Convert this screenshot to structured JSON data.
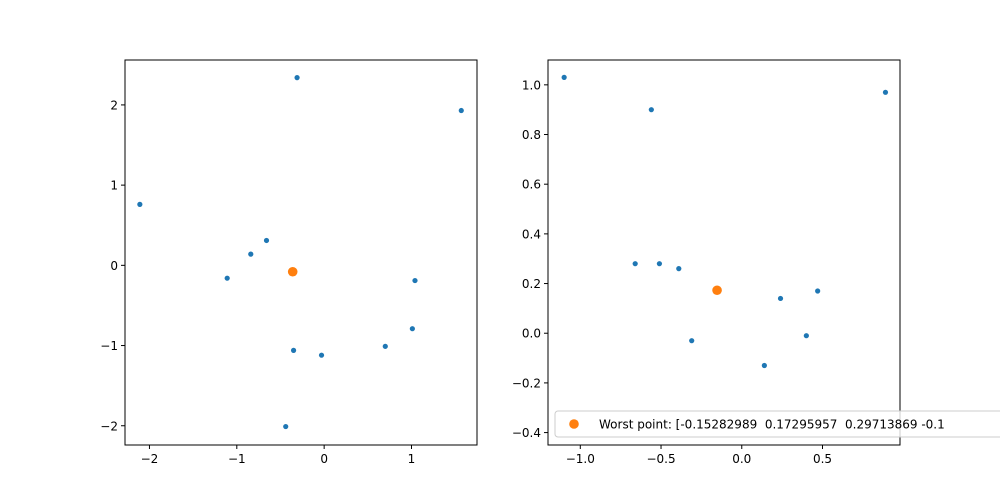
{
  "chart_data": [
    {
      "type": "scatter",
      "title": "",
      "xlabel": "",
      "ylabel": "",
      "xlim": [
        -2.28,
        1.75
      ],
      "ylim": [
        -2.24,
        2.56
      ],
      "xticks": [
        -2,
        -1,
        0,
        1
      ],
      "yticks": [
        -2,
        -1,
        0,
        1,
        2
      ],
      "xtick_labels": [
        "−2",
        "−1",
        "0",
        "1"
      ],
      "ytick_labels": [
        "−2",
        "−1",
        "0",
        "1",
        "2"
      ],
      "grid": false,
      "series": [
        {
          "color": "#1f77b4",
          "marker_size": "small",
          "x": [
            -0.31,
            1.57,
            -2.11,
            -0.66,
            -0.84,
            -1.11,
            1.04,
            1.01,
            0.7,
            -0.35,
            -0.03,
            -0.44
          ],
          "y": [
            2.34,
            1.93,
            0.76,
            0.31,
            0.14,
            -0.16,
            -0.19,
            -0.79,
            -1.01,
            -1.06,
            -1.12,
            -2.01
          ]
        },
        {
          "color": "#ff7f0e",
          "marker_size": "large",
          "x": [
            -0.36
          ],
          "y": [
            -0.08
          ]
        }
      ]
    },
    {
      "type": "scatter",
      "title": "",
      "xlabel": "",
      "ylabel": "",
      "xlim": [
        -1.2,
        0.98
      ],
      "ylim": [
        -0.45,
        1.1
      ],
      "xticks": [
        -1.0,
        -0.5,
        0.0,
        0.5
      ],
      "yticks": [
        -0.4,
        -0.2,
        0.0,
        0.2,
        0.4,
        0.6,
        0.8,
        1.0
      ],
      "xtick_labels": [
        "−1.0",
        "−0.5",
        "0.0",
        "0.5"
      ],
      "ytick_labels": [
        "−0.4",
        "−0.2",
        "0.0",
        "0.2",
        "0.4",
        "0.6",
        "0.8",
        "1.0"
      ],
      "grid": false,
      "legend_position": "lower-right",
      "series": [
        {
          "color": "#1f77b4",
          "marker_size": "small",
          "x": [
            -1.1,
            -0.56,
            0.89,
            -0.66,
            -0.51,
            -0.39,
            0.24,
            0.47,
            0.4,
            -0.31,
            0.14
          ],
          "y": [
            1.03,
            0.9,
            0.97,
            0.28,
            0.28,
            0.26,
            0.14,
            0.17,
            -0.01,
            -0.03,
            -0.13
          ]
        },
        {
          "name": "Worst point: [-0.15282989  0.17295957  0.29713869 -0.1",
          "color": "#ff7f0e",
          "marker_size": "large",
          "x": [
            -0.153
          ],
          "y": [
            0.173
          ]
        }
      ]
    }
  ]
}
